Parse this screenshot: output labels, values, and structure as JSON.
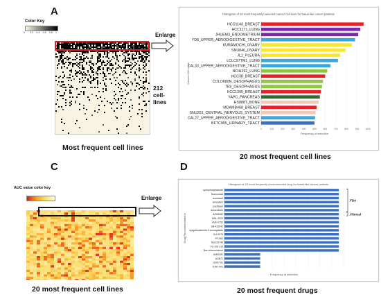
{
  "panels": {
    "A": {
      "letter": "A",
      "color_key_title": "Color Key",
      "color_key_ticks": [
        "0",
        "0.2",
        "0.4",
        "0.6",
        "0.8",
        "1"
      ],
      "enlarge_label": "Enlarge",
      "cell_count": "212",
      "cell_word": "cell-",
      "lines_word": "lines",
      "caption": "Most frequent cell lines"
    },
    "B": {
      "letter": "B",
      "caption": "20 most frequent cell lines",
      "chart_data": {
        "type": "bar",
        "orientation": "horizontal",
        "title": "Histogram of 20 most frequently selected cancer cell lines for basal-like cancer patients",
        "ylabel": "Cancer Cell Lines",
        "xlabel": "Frequency of selection",
        "xlim": [
          0,
          1000
        ],
        "xticks": [
          "0",
          "100",
          "200",
          "300",
          "400",
          "500",
          "600",
          "700",
          "800",
          "900",
          "1000"
        ],
        "categories": [
          "HCC1143_BREAST",
          "HCC1171_LUNG",
          "JHUEM3_ENDOMETRIUM",
          "YD8_UPPER_AERODIGESTIVE_TRACT",
          "KURAMOCHI_OVARY",
          "SNU840_OVARY",
          "JL1_PLEURA",
          "LCLC97TM1_LUNG",
          "CAL33_UPPER_AERODIGESTIVE_TRACT",
          "NCIH292_LUNG",
          "HCC38_BREAST",
          "COLO680N_OESOPHAGUS",
          "TE8_OESOPHAGUS",
          "HCC1395_BREAST",
          "YAPC_PANCREAS",
          "HS888T_BONE",
          "MDAMB468_BREAST",
          "SNU201_CENTRAL_NERVOUS_SYSTEM",
          "CAL27_UPPER_AERODIGESTIVE_TRACT",
          "BFTC905_URINARY_TRACT"
        ],
        "values": [
          960,
          930,
          910,
          880,
          850,
          790,
          740,
          720,
          650,
          620,
          600,
          580,
          570,
          560,
          550,
          540,
          520,
          510,
          505,
          500
        ],
        "colors": [
          "#e8202a",
          "#7a2aa8",
          "#7a2aa8",
          "#3aa8e0",
          "#f7e733",
          "#f7e733",
          "#f7e733",
          "#3aa8e0",
          "#3aa8e0",
          "#8cc63f",
          "#e8202a",
          "#8cc63f",
          "#8cc63f",
          "#e8202a",
          "#2f6b2f",
          "#f2c9b8",
          "#e8202a",
          "#f2c9b8",
          "#3aa8e0",
          "#3a6fc4"
        ]
      }
    },
    "C": {
      "letter": "C",
      "color_key_title": "AUC value color key",
      "enlarge_label": "Enlarge",
      "caption": "20 most frequent cell lines"
    },
    "D": {
      "letter": "D",
      "caption": "20 most frequent drugs",
      "fda_label": "FDA",
      "clinical_label": "Clinical",
      "chart_data": {
        "type": "bar",
        "orientation": "horizontal",
        "title": "Histogram of 20 most frequently recommended drug for basal-like cancer patients",
        "ylabel": "Drug Recommendations",
        "xlabel": "Frequency of selection",
        "xlim": [
          0,
          1000
        ],
        "categories": [
          "cyclophosphamide",
          "fluorouracil",
          "docetaxel",
          "tamoxifen",
          "paclitaxel",
          "doxorubicin",
          "AZD6482",
          "BRL-2020",
          "AVE-0752",
          "SB-432542",
          "epigallocatechin-3-monogallate",
          "KU-0075",
          "PF-562",
          "NSC25746",
          "TG-100-115",
          "Bac chlorociclonol",
          "UMI0251",
          "AGB71",
          "GSK7-61",
          "SJAL-001"
        ],
        "values": [
          960,
          960,
          960,
          960,
          960,
          960,
          960,
          960,
          960,
          960,
          960,
          960,
          960,
          960,
          960,
          960,
          300,
          300,
          300,
          300
        ],
        "bar_color": "#3a6fc4"
      }
    }
  }
}
